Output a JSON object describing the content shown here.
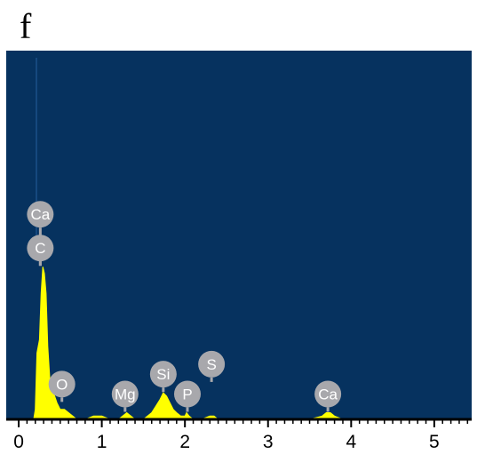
{
  "panel_label": "f",
  "chart_data": {
    "type": "area",
    "title": "",
    "xlabel": "",
    "ylabel": "",
    "xlim": [
      -0.15,
      5.45
    ],
    "ylim": [
      0,
      100
    ],
    "x_ticks": [
      0,
      1,
      2,
      3,
      4,
      5
    ],
    "x_tick_labels": [
      "0",
      "1",
      "2",
      "3",
      "4",
      "5"
    ],
    "grid": false,
    "legend": "none",
    "colors": {
      "plot_background": "#06325f",
      "spectrum_fill": "#ffff00",
      "label_circle": "#a8a8ac",
      "label_text": "#ffffff",
      "axis": "#000000"
    },
    "series": [
      {
        "x": [
          0.0,
          0.1,
          0.18,
          0.2,
          0.22,
          0.25,
          0.27,
          0.29,
          0.31,
          0.33,
          0.35,
          0.38,
          0.42,
          0.46,
          0.5,
          0.55,
          0.6,
          0.65,
          0.7,
          0.8,
          0.9,
          1.0,
          1.1,
          1.2,
          1.25,
          1.3,
          1.35,
          1.4,
          1.5,
          1.6,
          1.65,
          1.7,
          1.74,
          1.78,
          1.82,
          1.86,
          1.9,
          1.95,
          2.0,
          2.02,
          2.05,
          2.1,
          2.2,
          2.3,
          2.35,
          2.4,
          2.5,
          3.0,
          3.5,
          3.65,
          3.7,
          3.75,
          3.8,
          3.9,
          4.5,
          5.0,
          5.45
        ],
        "y": [
          0,
          0,
          0,
          3,
          20,
          24,
          38,
          46,
          44,
          38,
          22,
          10,
          8,
          5,
          3,
          3,
          2,
          1,
          0,
          0,
          1,
          1,
          0,
          0,
          1,
          2,
          1,
          0,
          0,
          2,
          4,
          6,
          8,
          7,
          5,
          3,
          2,
          1,
          1,
          2,
          1,
          0,
          0,
          1,
          1,
          0,
          0,
          0,
          0,
          1,
          2,
          2,
          1,
          0,
          0,
          0,
          0
        ]
      }
    ],
    "peak_labels": [
      {
        "text": "Ca",
        "x": 0.26,
        "y": 46,
        "stack": 1
      },
      {
        "text": "C",
        "x": 0.26,
        "y": 46,
        "stack": 0
      },
      {
        "text": "O",
        "x": 0.52,
        "y": 5,
        "stack": 0
      },
      {
        "text": "Mg",
        "x": 1.28,
        "y": 2,
        "stack": 0
      },
      {
        "text": "Si",
        "x": 1.74,
        "y": 8,
        "stack": 0
      },
      {
        "text": "P",
        "x": 2.03,
        "y": 2,
        "stack": 0
      },
      {
        "text": "S",
        "x": 2.32,
        "y": 11,
        "stack": 0
      },
      {
        "text": "Ca",
        "x": 3.72,
        "y": 2,
        "stack": 0
      }
    ]
  }
}
